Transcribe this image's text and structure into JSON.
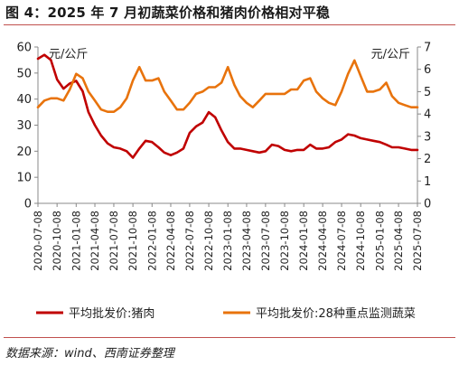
{
  "title": "图 4：2025 年 7 月初蔬菜价格和猪肉价格相对平稳",
  "source": "数据来源：wind、西南证券整理",
  "chart_data": {
    "type": "line",
    "left_unit": "元/公斤",
    "right_unit": "元/公斤",
    "y_left": {
      "min": 0,
      "max": 60,
      "ticks": [
        "0",
        "10",
        "20",
        "30",
        "40",
        "50",
        "60"
      ]
    },
    "y_right": {
      "min": 0,
      "max": 7,
      "ticks": [
        "0",
        "1",
        "2",
        "3",
        "4",
        "5",
        "6",
        "7"
      ]
    },
    "x_ticks": [
      "2020-07-08",
      "2020-10-08",
      "2021-01-08",
      "2021-04-08",
      "2021-07-08",
      "2021-10-08",
      "2022-01-08",
      "2022-04-08",
      "2022-07-08",
      "2022-10-08",
      "2023-01-08",
      "2023-04-08",
      "2023-07-08",
      "2023-10-08",
      "2024-01-08",
      "2024-04-08",
      "2024-07-08",
      "2024-10-08",
      "2025-01-08",
      "2025-04-08",
      "2025-07-08"
    ],
    "series": [
      {
        "name": "平均批发价:猪肉",
        "axis": "left",
        "color": "#c00000",
        "points": [
          [
            "2020-07-08",
            55.5
          ],
          [
            "2020-08-08",
            57.0
          ],
          [
            "2020-09-08",
            55.0
          ],
          [
            "2020-10-08",
            47.5
          ],
          [
            "2020-11-08",
            44.0
          ],
          [
            "2020-12-08",
            46.0
          ],
          [
            "2021-01-08",
            47.0
          ],
          [
            "2021-02-08",
            43.0
          ],
          [
            "2021-03-08",
            35.0
          ],
          [
            "2021-04-08",
            30.0
          ],
          [
            "2021-05-08",
            26.0
          ],
          [
            "2021-06-08",
            23.0
          ],
          [
            "2021-07-08",
            21.5
          ],
          [
            "2021-08-08",
            21.0
          ],
          [
            "2021-09-08",
            20.0
          ],
          [
            "2021-10-08",
            17.5
          ],
          [
            "2021-11-08",
            21.0
          ],
          [
            "2021-12-08",
            24.0
          ],
          [
            "2022-01-08",
            23.5
          ],
          [
            "2022-02-08",
            21.5
          ],
          [
            "2022-03-08",
            19.5
          ],
          [
            "2022-04-08",
            18.5
          ],
          [
            "2022-05-08",
            19.5
          ],
          [
            "2022-06-08",
            21.0
          ],
          [
            "2022-07-08",
            27.0
          ],
          [
            "2022-08-08",
            29.5
          ],
          [
            "2022-09-08",
            31.0
          ],
          [
            "2022-10-08",
            35.0
          ],
          [
            "2022-11-08",
            33.0
          ],
          [
            "2022-12-08",
            28.0
          ],
          [
            "2023-01-08",
            23.5
          ],
          [
            "2023-02-08",
            21.0
          ],
          [
            "2023-03-08",
            21.0
          ],
          [
            "2023-04-08",
            20.5
          ],
          [
            "2023-05-08",
            20.0
          ],
          [
            "2023-06-08",
            19.5
          ],
          [
            "2023-07-08",
            20.0
          ],
          [
            "2023-08-08",
            22.5
          ],
          [
            "2023-09-08",
            22.0
          ],
          [
            "2023-10-08",
            20.5
          ],
          [
            "2023-11-08",
            20.0
          ],
          [
            "2023-12-08",
            20.5
          ],
          [
            "2024-01-08",
            20.5
          ],
          [
            "2024-02-08",
            22.5
          ],
          [
            "2024-03-08",
            21.0
          ],
          [
            "2024-04-08",
            21.0
          ],
          [
            "2024-05-08",
            21.5
          ],
          [
            "2024-06-08",
            23.5
          ],
          [
            "2024-07-08",
            24.5
          ],
          [
            "2024-08-08",
            26.5
          ],
          [
            "2024-09-08",
            26.0
          ],
          [
            "2024-10-08",
            25.0
          ],
          [
            "2024-11-08",
            24.5
          ],
          [
            "2024-12-08",
            24.0
          ],
          [
            "2025-01-08",
            23.5
          ],
          [
            "2025-02-08",
            22.5
          ],
          [
            "2025-03-08",
            21.5
          ],
          [
            "2025-04-08",
            21.5
          ],
          [
            "2025-05-08",
            21.0
          ],
          [
            "2025-06-08",
            20.5
          ],
          [
            "2025-07-08",
            20.5
          ]
        ]
      },
      {
        "name": "平均批发价:28种重点监测蔬菜",
        "axis": "right",
        "color": "#e8730c",
        "points": [
          [
            "2020-07-08",
            4.3
          ],
          [
            "2020-08-08",
            4.6
          ],
          [
            "2020-09-08",
            4.7
          ],
          [
            "2020-10-08",
            4.7
          ],
          [
            "2020-11-08",
            4.6
          ],
          [
            "2020-12-08",
            5.1
          ],
          [
            "2021-01-08",
            5.8
          ],
          [
            "2021-02-08",
            5.6
          ],
          [
            "2021-03-08",
            5.0
          ],
          [
            "2021-04-08",
            4.6
          ],
          [
            "2021-05-08",
            4.2
          ],
          [
            "2021-06-08",
            4.1
          ],
          [
            "2021-07-08",
            4.1
          ],
          [
            "2021-08-08",
            4.3
          ],
          [
            "2021-09-08",
            4.7
          ],
          [
            "2021-10-08",
            5.5
          ],
          [
            "2021-11-08",
            6.1
          ],
          [
            "2021-12-08",
            5.5
          ],
          [
            "2022-01-08",
            5.5
          ],
          [
            "2022-02-08",
            5.6
          ],
          [
            "2022-03-08",
            5.0
          ],
          [
            "2022-04-08",
            4.6
          ],
          [
            "2022-05-08",
            4.2
          ],
          [
            "2022-06-08",
            4.2
          ],
          [
            "2022-07-08",
            4.5
          ],
          [
            "2022-08-08",
            4.9
          ],
          [
            "2022-09-08",
            5.0
          ],
          [
            "2022-10-08",
            5.2
          ],
          [
            "2022-11-08",
            5.2
          ],
          [
            "2022-12-08",
            5.4
          ],
          [
            "2023-01-08",
            6.1
          ],
          [
            "2023-02-08",
            5.3
          ],
          [
            "2023-03-08",
            4.8
          ],
          [
            "2023-04-08",
            4.5
          ],
          [
            "2023-05-08",
            4.3
          ],
          [
            "2023-06-08",
            4.6
          ],
          [
            "2023-07-08",
            4.9
          ],
          [
            "2023-08-08",
            4.9
          ],
          [
            "2023-09-08",
            4.9
          ],
          [
            "2023-10-08",
            4.9
          ],
          [
            "2023-11-08",
            5.1
          ],
          [
            "2023-12-08",
            5.1
          ],
          [
            "2024-01-08",
            5.5
          ],
          [
            "2024-02-08",
            5.6
          ],
          [
            "2024-03-08",
            5.0
          ],
          [
            "2024-04-08",
            4.7
          ],
          [
            "2024-05-08",
            4.5
          ],
          [
            "2024-06-08",
            4.4
          ],
          [
            "2024-07-08",
            5.0
          ],
          [
            "2024-08-08",
            5.8
          ],
          [
            "2024-09-08",
            6.4
          ],
          [
            "2024-10-08",
            5.7
          ],
          [
            "2024-11-08",
            5.0
          ],
          [
            "2024-12-08",
            5.0
          ],
          [
            "2025-01-08",
            5.1
          ],
          [
            "2025-02-08",
            5.4
          ],
          [
            "2025-03-08",
            4.8
          ],
          [
            "2025-04-08",
            4.5
          ],
          [
            "2025-05-08",
            4.4
          ],
          [
            "2025-06-08",
            4.3
          ],
          [
            "2025-07-08",
            4.3
          ]
        ]
      }
    ],
    "legend_position": "bottom"
  }
}
